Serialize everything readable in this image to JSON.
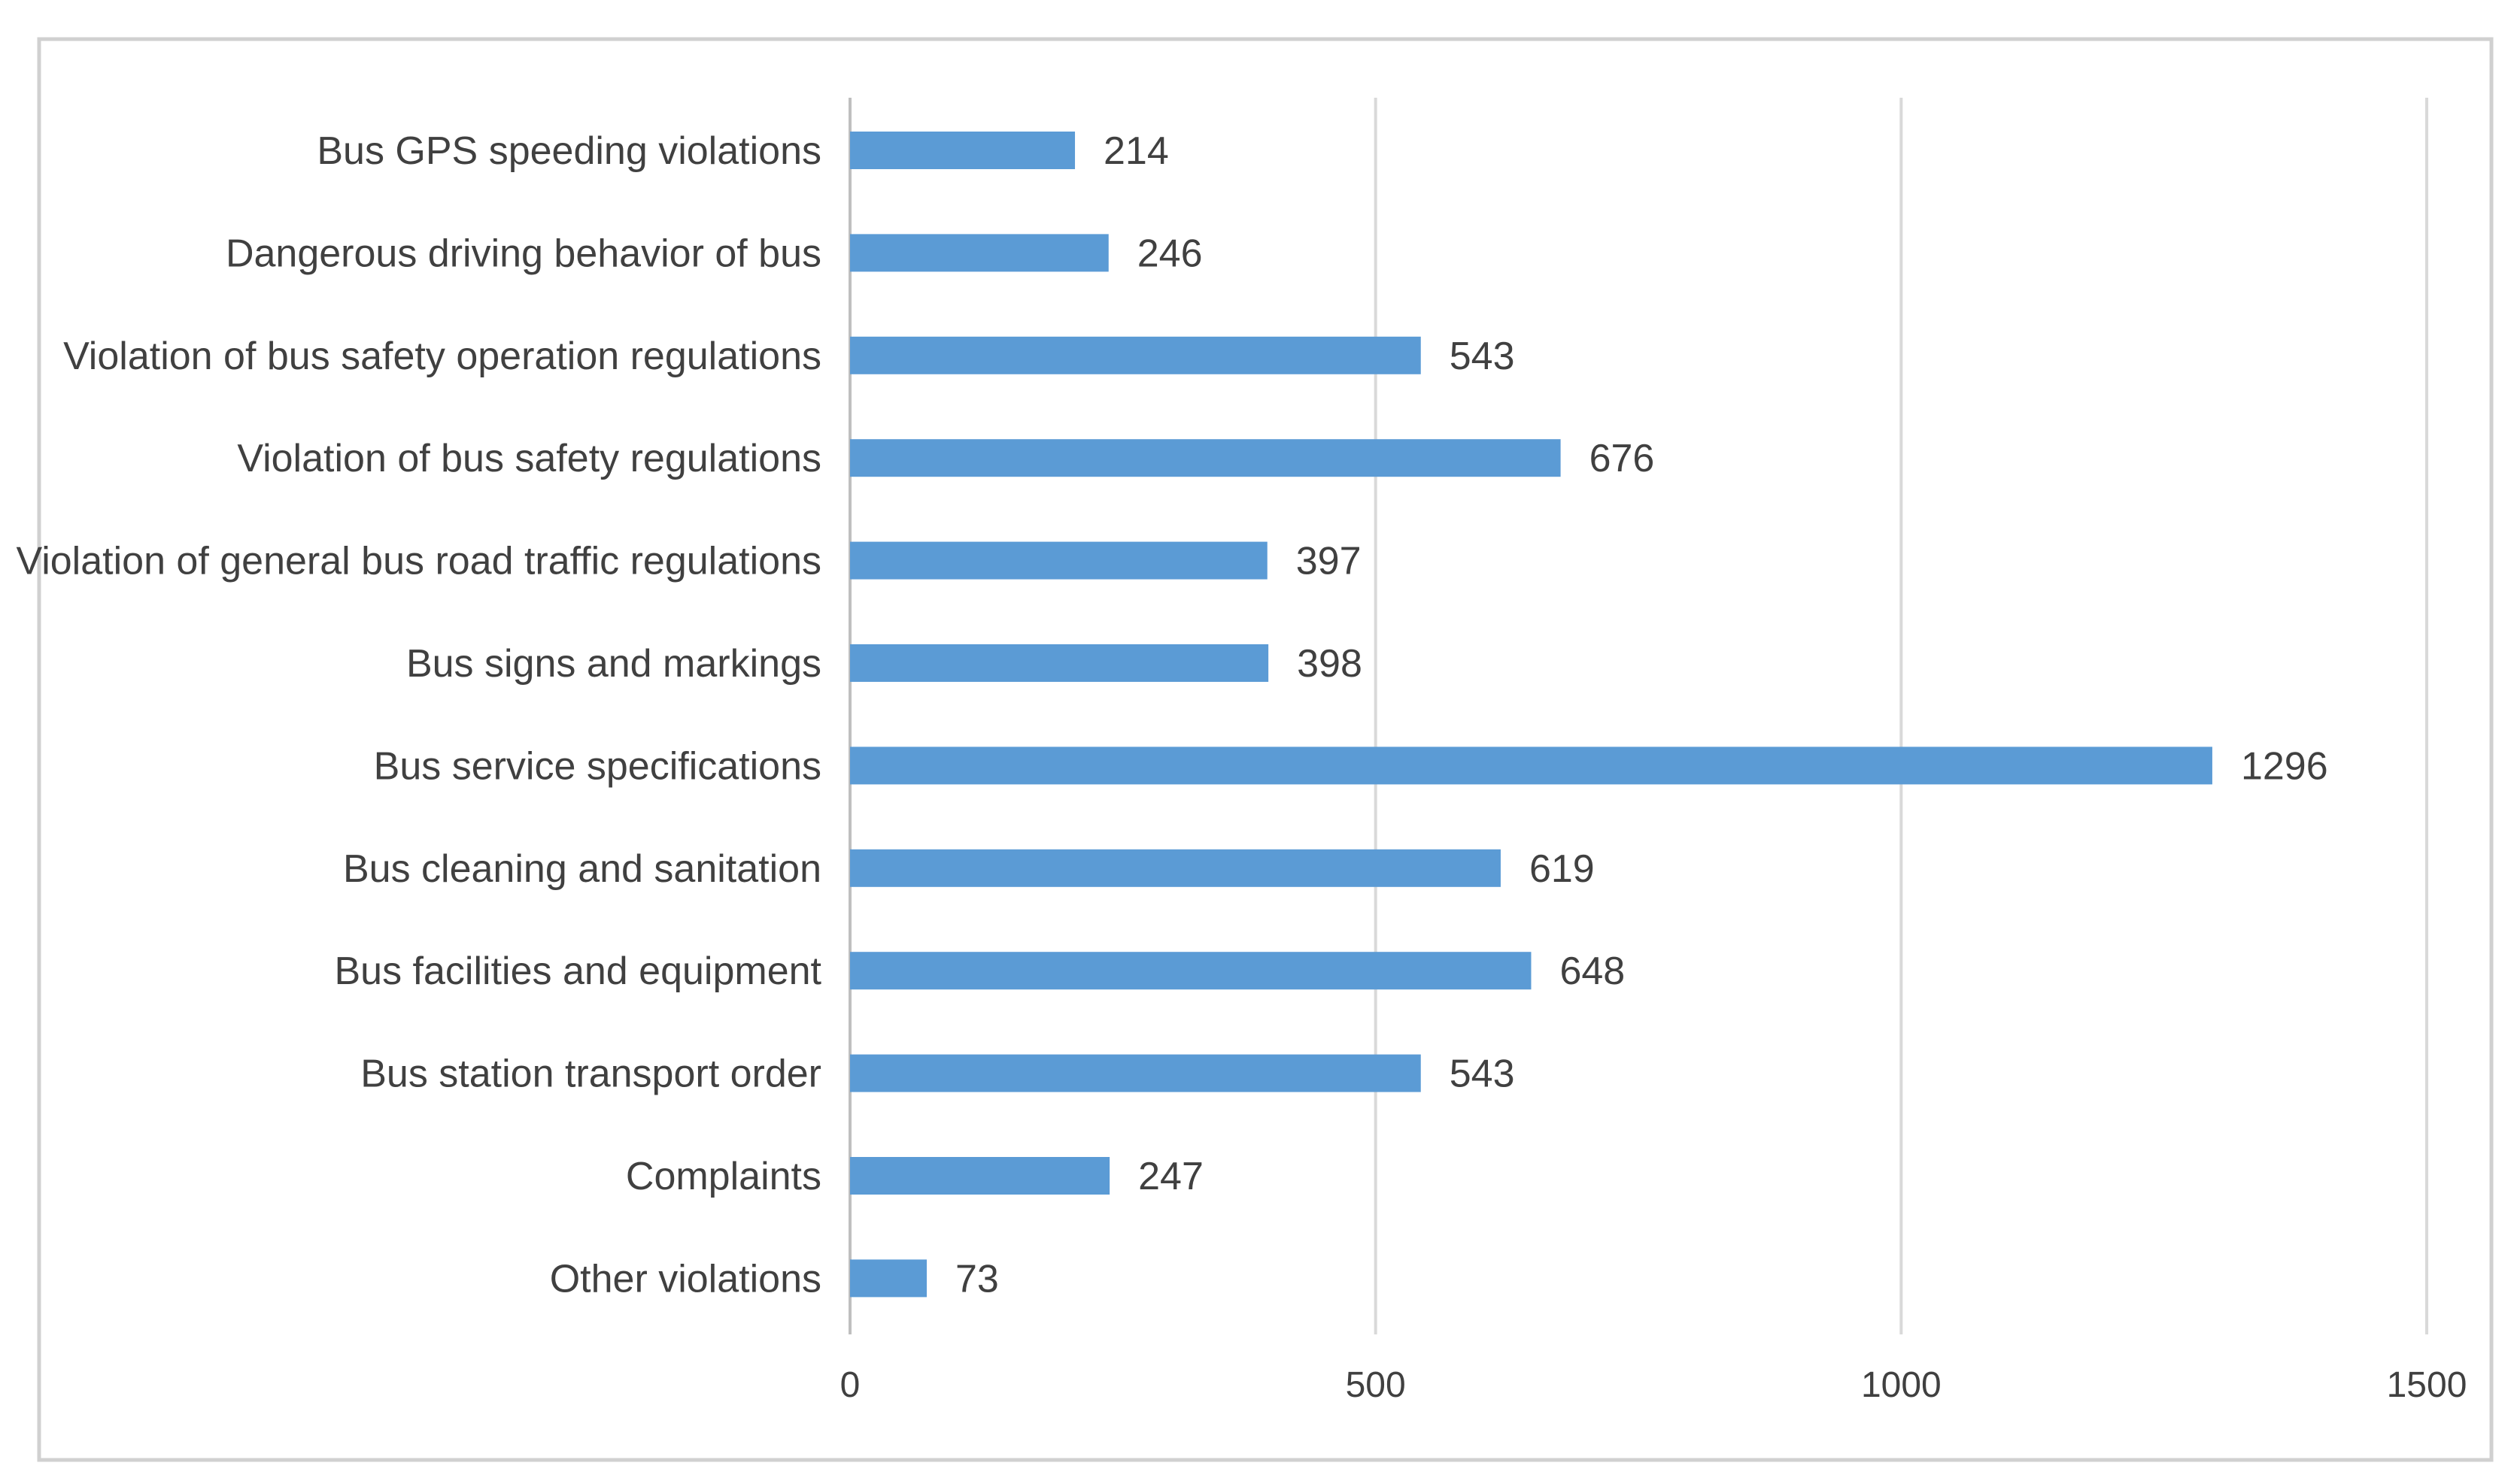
{
  "chart_data": {
    "type": "bar",
    "orientation": "horizontal",
    "title": "",
    "xlabel": "",
    "ylabel": "",
    "categories": [
      "Bus GPS speeding violations",
      "Dangerous driving behavior of bus",
      "Violation of bus safety operation regulations",
      "Violation of bus safety regulations",
      "Violation of general bus road traffic regulations",
      "Bus signs and markings",
      "Bus service specifications",
      "Bus cleaning and sanitation",
      "Bus facilities and equipment",
      "Bus station transport order",
      "Complaints",
      "Other violations"
    ],
    "values": [
      214,
      246,
      543,
      676,
      397,
      398,
      1296,
      619,
      648,
      543,
      247,
      73
    ],
    "xlim": [
      0,
      1500
    ],
    "xticks": [
      0,
      500,
      1000,
      1500
    ],
    "grid": true,
    "legend": "none",
    "bar_color": "#5b9bd5"
  }
}
